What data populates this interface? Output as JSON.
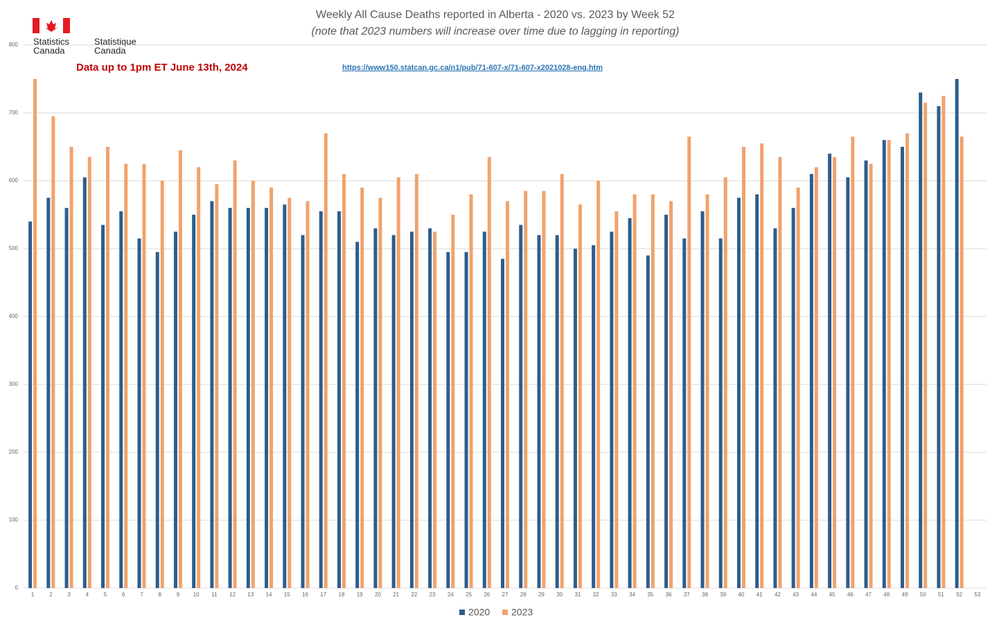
{
  "chart_data": {
    "type": "bar",
    "title": "Weekly All Cause Deaths reported in Alberta - 2020 vs. 2023 by Week 52",
    "subtitle": "(note that 2023 numbers will increase over time due to lagging in reporting)",
    "annotations": [
      "Data up to 1pm ET June 13th, 2024",
      "https://www150.statcan.gc.ca/n1/pub/71-607-x/71-607-x2021028-eng.htm",
      "Statistics",
      "Canada",
      "Statistique",
      "Canada"
    ],
    "categories": [
      "1",
      "2",
      "3",
      "4",
      "5",
      "6",
      "7",
      "8",
      "9",
      "10",
      "11",
      "12",
      "13",
      "14",
      "15",
      "16",
      "17",
      "18",
      "19",
      "20",
      "21",
      "22",
      "23",
      "24",
      "25",
      "26",
      "27",
      "28",
      "29",
      "30",
      "31",
      "32",
      "33",
      "34",
      "35",
      "36",
      "37",
      "38",
      "39",
      "40",
      "41",
      "42",
      "43",
      "44",
      "45",
      "46",
      "47",
      "48",
      "49",
      "50",
      "51",
      "52",
      "53"
    ],
    "series": [
      {
        "name": "2020",
        "color": "#2e5d8c",
        "values": [
          540,
          575,
          560,
          605,
          535,
          555,
          515,
          495,
          525,
          550,
          570,
          560,
          560,
          560,
          565,
          520,
          555,
          555,
          510,
          530,
          520,
          525,
          530,
          495,
          495,
          525,
          485,
          535,
          520,
          520,
          500,
          505,
          525,
          545,
          490,
          550,
          515,
          555,
          515,
          575,
          580,
          530,
          560,
          610,
          640,
          605,
          630,
          660,
          650,
          730,
          710,
          750,
          null
        ]
      },
      {
        "name": "2023",
        "color": "#f0a36c",
        "values": [
          750,
          695,
          650,
          635,
          650,
          625,
          625,
          600,
          645,
          620,
          595,
          630,
          600,
          590,
          575,
          570,
          670,
          610,
          590,
          575,
          605,
          610,
          525,
          550,
          580,
          635,
          570,
          585,
          585,
          610,
          565,
          600,
          555,
          580,
          580,
          570,
          665,
          580,
          605,
          650,
          655,
          635,
          590,
          620,
          635,
          665,
          625,
          660,
          670,
          715,
          725,
          665,
          null
        ]
      }
    ],
    "ylim": [
      0,
      800
    ],
    "yticks": [
      0,
      100,
      200,
      300,
      400,
      500,
      600,
      700,
      800
    ],
    "grid": true,
    "legend": "bottom"
  }
}
